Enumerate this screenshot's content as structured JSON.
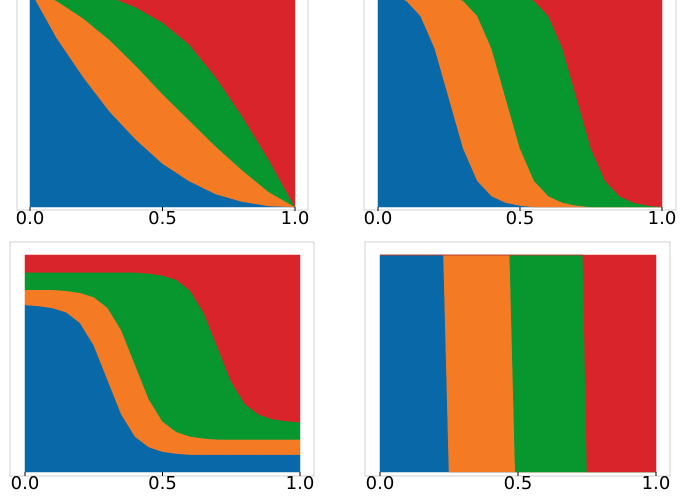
{
  "chart_data": [
    {
      "type": "area",
      "stacked": true,
      "x": [
        0,
        0.1,
        0.2,
        0.3,
        0.4,
        0.5,
        0.6,
        0.7,
        0.8,
        0.9,
        1
      ],
      "series": [
        {
          "color": "#0868a8",
          "values": [
            1,
            0.78,
            0.6,
            0.44,
            0.31,
            0.2,
            0.12,
            0.06,
            0.025,
            0.005,
            0
          ]
        },
        {
          "color": "#f57a24",
          "values": [
            0,
            0.17,
            0.27,
            0.33,
            0.34,
            0.32,
            0.28,
            0.22,
            0.145,
            0.065,
            0
          ]
        },
        {
          "color": "#08962f",
          "values": [
            0,
            0.05,
            0.13,
            0.2,
            0.27,
            0.33,
            0.35,
            0.32,
            0.25,
            0.15,
            0
          ]
        },
        {
          "color": "#d9242b",
          "values": [
            0,
            0,
            0,
            0.03,
            0.08,
            0.15,
            0.25,
            0.4,
            0.58,
            0.78,
            1
          ]
        }
      ],
      "xlim": [
        0,
        1
      ],
      "ylim": [
        0,
        1
      ],
      "xticks": [
        {
          "value": 0,
          "label": "0.0"
        },
        {
          "value": 0.5,
          "label": "0.5"
        },
        {
          "value": 1,
          "label": "1.0"
        }
      ]
    },
    {
      "type": "area",
      "stacked": true,
      "x": [
        0,
        0.05,
        0.1,
        0.15,
        0.2,
        0.25,
        0.3,
        0.35,
        0.4,
        0.45,
        0.5,
        0.55,
        0.6,
        0.65,
        0.7,
        0.75,
        0.8,
        0.85,
        0.9,
        0.95,
        1
      ],
      "series": [
        {
          "color": "#0868a8",
          "values": [
            0.993,
            0.98,
            0.95,
            0.88,
            0.73,
            0.5,
            0.27,
            0.12,
            0.05,
            0.02,
            0.007,
            0,
            0,
            0,
            0,
            0,
            0,
            0,
            0,
            0,
            0
          ]
        },
        {
          "color": "#f57a24",
          "values": [
            0.007,
            0.02,
            0.05,
            0.12,
            0.263,
            0.48,
            0.68,
            0.76,
            0.68,
            0.48,
            0.263,
            0.12,
            0.05,
            0.02,
            0.007,
            0,
            0,
            0,
            0,
            0,
            0
          ]
        },
        {
          "color": "#08962f",
          "values": [
            0,
            0,
            0,
            0,
            0.007,
            0.02,
            0.05,
            0.12,
            0.27,
            0.493,
            0.71,
            0.83,
            0.83,
            0.71,
            0.493,
            0.27,
            0.12,
            0.05,
            0.02,
            0.007,
            0
          ]
        },
        {
          "color": "#d9242b",
          "values": [
            0,
            0,
            0,
            0,
            0,
            0,
            0,
            0,
            0,
            0.007,
            0.02,
            0.05,
            0.12,
            0.27,
            0.5,
            0.73,
            0.88,
            0.95,
            0.98,
            0.993,
            1
          ]
        }
      ],
      "xlim": [
        0,
        1
      ],
      "ylim": [
        0,
        1
      ],
      "xticks": [
        {
          "value": 0,
          "label": "0.0"
        },
        {
          "value": 0.5,
          "label": "0.5"
        },
        {
          "value": 1,
          "label": "1.0"
        }
      ]
    },
    {
      "type": "area",
      "stacked": true,
      "x": [
        0,
        0.05,
        0.1,
        0.15,
        0.2,
        0.25,
        0.3,
        0.35,
        0.4,
        0.45,
        0.5,
        0.55,
        0.6,
        0.65,
        0.7,
        0.75,
        0.8,
        0.85,
        0.9,
        0.95,
        1
      ],
      "series": [
        {
          "color": "#0868a8",
          "values": [
            0.77,
            0.765,
            0.756,
            0.736,
            0.687,
            0.584,
            0.425,
            0.266,
            0.163,
            0.115,
            0.094,
            0.085,
            0.08,
            0.08,
            0.08,
            0.08,
            0.08,
            0.08,
            0.08,
            0.08,
            0.08
          ]
        },
        {
          "color": "#f57a24",
          "values": [
            0.07,
            0.075,
            0.084,
            0.099,
            0.139,
            0.222,
            0.332,
            0.388,
            0.332,
            0.221,
            0.139,
            0.1,
            0.084,
            0.075,
            0.07,
            0.07,
            0.07,
            0.07,
            0.07,
            0.07,
            0.07
          ]
        },
        {
          "color": "#08962f",
          "values": [
            0.08,
            0.08,
            0.08,
            0.085,
            0.094,
            0.114,
            0.163,
            0.266,
            0.425,
            0.579,
            0.673,
            0.701,
            0.673,
            0.579,
            0.425,
            0.266,
            0.163,
            0.115,
            0.094,
            0.085,
            0.08
          ]
        },
        {
          "color": "#d9242b",
          "values": [
            0.08,
            0.08,
            0.08,
            0.08,
            0.08,
            0.08,
            0.08,
            0.08,
            0.08,
            0.085,
            0.094,
            0.114,
            0.163,
            0.266,
            0.425,
            0.584,
            0.687,
            0.735,
            0.756,
            0.765,
            0.77
          ]
        }
      ],
      "xlim": [
        0,
        1
      ],
      "ylim": [
        0,
        1
      ],
      "xticks": [
        {
          "value": 0,
          "label": "0.0"
        },
        {
          "value": 0.5,
          "label": "0.5"
        },
        {
          "value": 1,
          "label": "1.0"
        }
      ]
    },
    {
      "type": "area",
      "stacked": true,
      "x": [
        0,
        0.23,
        0.25,
        0.47,
        0.49,
        0.735,
        0.75,
        1
      ],
      "series": [
        {
          "color": "#0868a8",
          "values": [
            1,
            1,
            0,
            0,
            0,
            0,
            0,
            0
          ]
        },
        {
          "color": "#f57a24",
          "values": [
            0,
            0,
            1,
            1,
            0,
            0,
            0,
            0
          ]
        },
        {
          "color": "#08962f",
          "values": [
            0,
            0,
            0,
            0,
            1,
            1,
            0,
            0
          ]
        },
        {
          "color": "#d9242b",
          "values": [
            0,
            0,
            0,
            0,
            0,
            0,
            1,
            1
          ]
        }
      ],
      "xlim": [
        0,
        1
      ],
      "ylim": [
        0,
        1
      ],
      "xticks": [
        {
          "value": 0,
          "label": "0.0"
        },
        {
          "value": 0.5,
          "label": "0.5"
        },
        {
          "value": 1,
          "label": "1.0"
        }
      ]
    }
  ]
}
